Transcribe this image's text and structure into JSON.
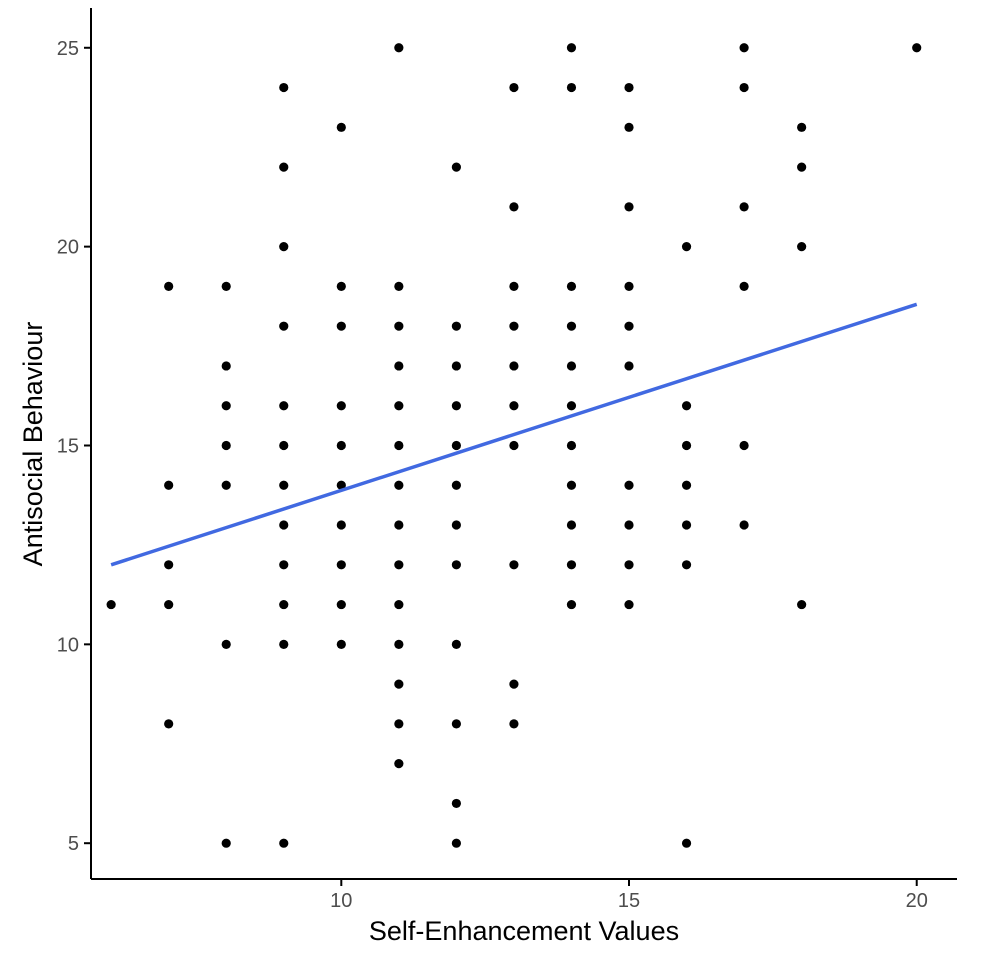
{
  "chart_data": {
    "type": "scatter",
    "title": "",
    "xlabel": "Self-Enhancement Values",
    "ylabel": "Antisocial Behaviour",
    "xlim": [
      5.65,
      20.7
    ],
    "ylim": [
      4.1,
      26.0
    ],
    "xticks": [
      10,
      15,
      20
    ],
    "yticks": [
      5,
      10,
      15,
      20,
      25
    ],
    "grid": false,
    "legend": "none",
    "colors": {
      "points": "#000000",
      "trend": "#4169e1",
      "axis": "#000000",
      "tick_text": "#4d4d4d"
    },
    "series": [
      {
        "points": [
          [
            6,
            11
          ],
          [
            7,
            19
          ],
          [
            7,
            14
          ],
          [
            7,
            12
          ],
          [
            7,
            11
          ],
          [
            7,
            8
          ],
          [
            8,
            19
          ],
          [
            8,
            17
          ],
          [
            8,
            16
          ],
          [
            8,
            15
          ],
          [
            8,
            14
          ],
          [
            8,
            10
          ],
          [
            8,
            5
          ],
          [
            9,
            24
          ],
          [
            9,
            22
          ],
          [
            9,
            20
          ],
          [
            9,
            18
          ],
          [
            9,
            16
          ],
          [
            9,
            15
          ],
          [
            9,
            14
          ],
          [
            9,
            13
          ],
          [
            9,
            12
          ],
          [
            9,
            11
          ],
          [
            9,
            10
          ],
          [
            9,
            5
          ],
          [
            10,
            23
          ],
          [
            10,
            19
          ],
          [
            10,
            18
          ],
          [
            10,
            16
          ],
          [
            10,
            15
          ],
          [
            10,
            14
          ],
          [
            10,
            13
          ],
          [
            10,
            12
          ],
          [
            10,
            11
          ],
          [
            10,
            10
          ],
          [
            11,
            25
          ],
          [
            11,
            19
          ],
          [
            11,
            18
          ],
          [
            11,
            17
          ],
          [
            11,
            16
          ],
          [
            11,
            15
          ],
          [
            11,
            14
          ],
          [
            11,
            13
          ],
          [
            11,
            12
          ],
          [
            11,
            11
          ],
          [
            11,
            10
          ],
          [
            11,
            9
          ],
          [
            11,
            8
          ],
          [
            11,
            7
          ],
          [
            12,
            22
          ],
          [
            12,
            18
          ],
          [
            12,
            17
          ],
          [
            12,
            16
          ],
          [
            12,
            15
          ],
          [
            12,
            14
          ],
          [
            12,
            13
          ],
          [
            12,
            12
          ],
          [
            12,
            10
          ],
          [
            12,
            8
          ],
          [
            12,
            6
          ],
          [
            12,
            5
          ],
          [
            13,
            24
          ],
          [
            13,
            21
          ],
          [
            13,
            19
          ],
          [
            13,
            18
          ],
          [
            13,
            17
          ],
          [
            13,
            16
          ],
          [
            13,
            15
          ],
          [
            13,
            12
          ],
          [
            13,
            9
          ],
          [
            13,
            8
          ],
          [
            14,
            25
          ],
          [
            14,
            24
          ],
          [
            14,
            19
          ],
          [
            14,
            18
          ],
          [
            14,
            17
          ],
          [
            14,
            16
          ],
          [
            14,
            15
          ],
          [
            14,
            14
          ],
          [
            14,
            13
          ],
          [
            14,
            12
          ],
          [
            14,
            11
          ],
          [
            15,
            24
          ],
          [
            15,
            23
          ],
          [
            15,
            21
          ],
          [
            15,
            19
          ],
          [
            15,
            18
          ],
          [
            15,
            17
          ],
          [
            15,
            14
          ],
          [
            15,
            13
          ],
          [
            15,
            12
          ],
          [
            15,
            11
          ],
          [
            16,
            20
          ],
          [
            16,
            16
          ],
          [
            16,
            15
          ],
          [
            16,
            14
          ],
          [
            16,
            13
          ],
          [
            16,
            12
          ],
          [
            16,
            5
          ],
          [
            17,
            25
          ],
          [
            17,
            24
          ],
          [
            17,
            21
          ],
          [
            17,
            19
          ],
          [
            17,
            15
          ],
          [
            17,
            13
          ],
          [
            18,
            23
          ],
          [
            18,
            22
          ],
          [
            18,
            20
          ],
          [
            18,
            11
          ],
          [
            20,
            25
          ]
        ]
      }
    ],
    "trend_line": {
      "x": [
        6,
        20
      ],
      "y": [
        12.0,
        18.55
      ]
    }
  }
}
